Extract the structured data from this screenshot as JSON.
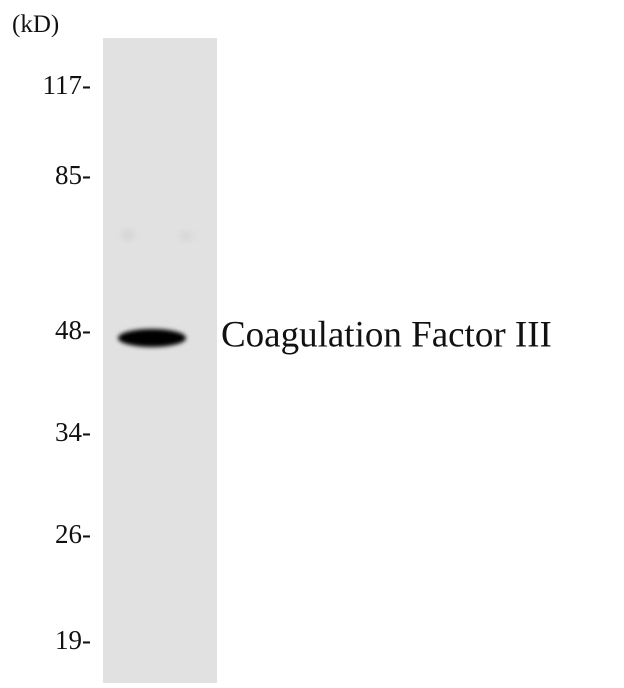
{
  "unit_label": "(kD)",
  "markers": [
    "117-",
    "85-",
    "48-",
    "34-",
    "26-",
    "19-"
  ],
  "band_label": "Coagulation Factor III"
}
